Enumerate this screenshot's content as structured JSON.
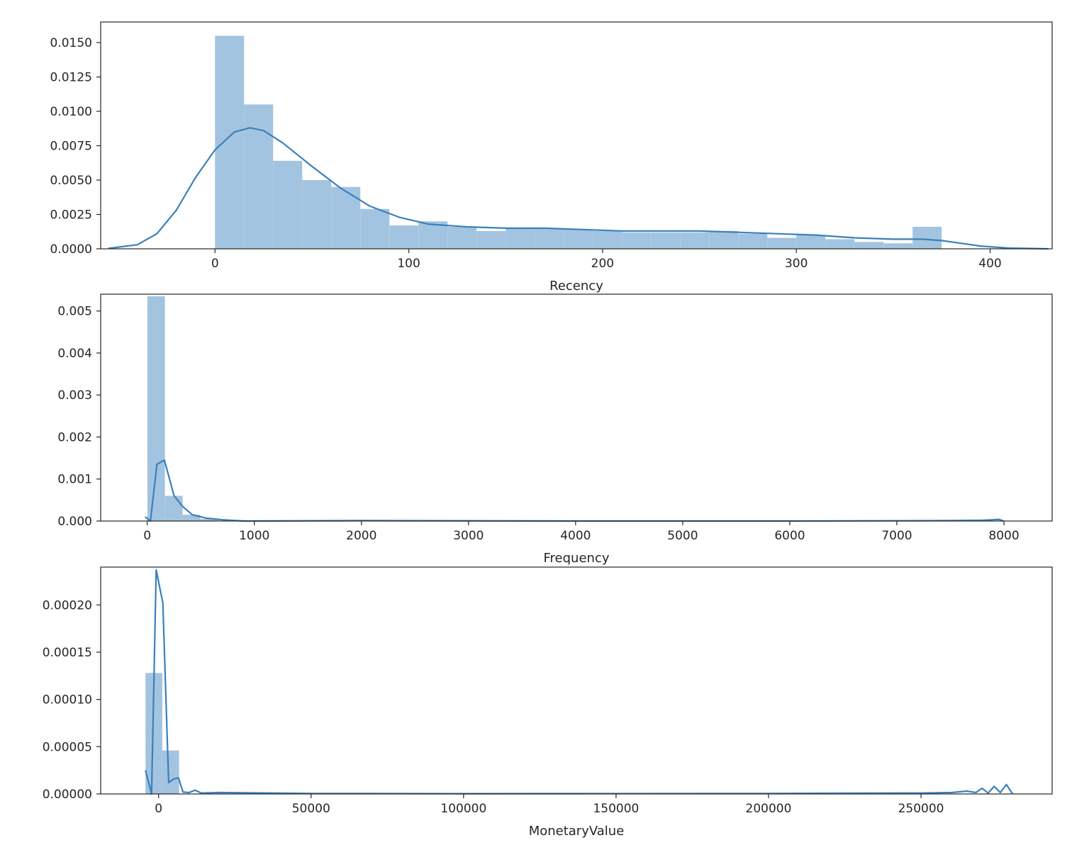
{
  "chart_data": [
    {
      "type": "histogram",
      "xlabel": "Recency",
      "ylabel": "",
      "xlim": [
        -59,
        432
      ],
      "ylim": [
        0,
        0.0165
      ],
      "xticks": [
        0,
        100,
        200,
        300,
        400
      ],
      "yticks": [
        0.0,
        0.0025,
        0.005,
        0.0075,
        0.01,
        0.0125,
        0.015
      ],
      "ytick_labels": [
        "0.0000",
        "0.0025",
        "0.0050",
        "0.0075",
        "0.0100",
        "0.0125",
        "0.0150"
      ],
      "xtick_labels": [
        "0",
        "100",
        "200",
        "300",
        "400"
      ],
      "bar_color": "#a3c4e0",
      "line_color": "#3a80bb",
      "grid": false,
      "bins": {
        "edges": [
          0,
          15,
          30,
          45,
          60,
          75,
          90,
          105,
          120,
          135,
          150,
          165,
          180,
          195,
          210,
          225,
          240,
          255,
          270,
          285,
          300,
          315,
          330,
          345,
          360,
          375
        ],
        "values": [
          0.0155,
          0.0105,
          0.0064,
          0.005,
          0.0045,
          0.0029,
          0.0017,
          0.002,
          0.0016,
          0.0013,
          0.0015,
          0.0015,
          0.0014,
          0.0013,
          0.0012,
          0.0012,
          0.0012,
          0.0013,
          0.0011,
          0.0008,
          0.001,
          0.0007,
          0.0005,
          0.0004,
          0.0016
        ]
      },
      "kde": {
        "x": [
          -55,
          -40,
          -30,
          -20,
          -10,
          0,
          10,
          18,
          25,
          35,
          50,
          65,
          80,
          95,
          110,
          130,
          150,
          170,
          190,
          210,
          230,
          250,
          270,
          290,
          310,
          330,
          350,
          365,
          375,
          385,
          395,
          410,
          430
        ],
        "y": [
          3e-05,
          0.0003,
          0.0011,
          0.0028,
          0.0052,
          0.0072,
          0.0085,
          0.0088,
          0.0086,
          0.0077,
          0.006,
          0.0044,
          0.0031,
          0.0023,
          0.0018,
          0.0016,
          0.0015,
          0.0015,
          0.0014,
          0.0013,
          0.0013,
          0.0013,
          0.0012,
          0.0011,
          0.001,
          0.0008,
          0.0007,
          0.0007,
          0.0006,
          0.0004,
          0.0002,
          5e-05,
          0.0
        ]
      }
    },
    {
      "type": "histogram",
      "xlabel": "Frequency",
      "ylabel": "",
      "xlim": [
        -435,
        8450
      ],
      "ylim": [
        0,
        0.0054
      ],
      "xticks": [
        0,
        1000,
        2000,
        3000,
        4000,
        5000,
        6000,
        7000,
        8000
      ],
      "yticks": [
        0.0,
        0.001,
        0.002,
        0.003,
        0.004,
        0.005
      ],
      "ytick_labels": [
        "0.000",
        "0.001",
        "0.002",
        "0.003",
        "0.004",
        "0.005"
      ],
      "xtick_labels": [
        "0",
        "1000",
        "2000",
        "3000",
        "4000",
        "5000",
        "6000",
        "7000",
        "8000"
      ],
      "bar_color": "#a3c4e0",
      "line_color": "#3a80bb",
      "grid": false,
      "bins": {
        "edges": [
          1,
          165,
          330,
          495,
          660
        ],
        "values": [
          0.00535,
          0.0006,
          0.00015,
          5e-05
        ]
      },
      "kde": {
        "x": [
          -20,
          30,
          90,
          160,
          250,
          330,
          420,
          550,
          700,
          900,
          2000,
          4000,
          6000,
          7500,
          7800,
          7900,
          7950,
          8000
        ],
        "y": [
          0.0001,
          0.0,
          0.00135,
          0.00145,
          0.0006,
          0.00035,
          0.00015,
          7e-05,
          3e-05,
          0.0,
          1e-05,
          0.0,
          0.0,
          1e-05,
          2e-05,
          3e-05,
          4e-05,
          0.0
        ]
      }
    },
    {
      "type": "histogram",
      "xlabel": "MonetaryValue",
      "ylabel": "",
      "xlim": [
        -19000,
        293000
      ],
      "ylim": [
        0,
        0.00024
      ],
      "xticks": [
        0,
        50000,
        100000,
        150000,
        200000,
        250000
      ],
      "yticks": [
        0.0,
        5e-05,
        0.0001,
        0.00015,
        0.0002
      ],
      "ytick_labels": [
        "0.00000",
        "0.00005",
        "0.00010",
        "0.00015",
        "0.00020"
      ],
      "xtick_labels": [
        "0",
        "50000",
        "100000",
        "150000",
        "200000",
        "250000"
      ],
      "bar_color": "#a3c4e0",
      "line_color": "#3a80bb",
      "grid": false,
      "bins": {
        "edges": [
          -4300,
          1200,
          6700
        ],
        "values": [
          0.000128,
          4.6e-05
        ]
      },
      "kde": {
        "x": [
          -4300,
          -2300,
          -800,
          1400,
          3300,
          5000,
          6500,
          8000,
          10000,
          12000,
          14000,
          20000,
          50000,
          100000,
          200000,
          250000,
          260000,
          265000,
          268000,
          270000,
          272000,
          274000,
          276000,
          278000,
          280000
        ],
        "y": [
          2.5e-05,
          0.0,
          0.000237,
          0.000202,
          1.2e-05,
          1.6e-05,
          1.7e-05,
          2e-06,
          1.5e-06,
          4e-06,
          1e-06,
          1.5e-06,
          5e-07,
          3e-07,
          5e-07,
          1e-06,
          1.5e-06,
          3e-06,
          1.5e-06,
          6e-06,
          1e-06,
          8e-06,
          1.5e-06,
          1e-05,
          0.0
        ]
      }
    }
  ]
}
